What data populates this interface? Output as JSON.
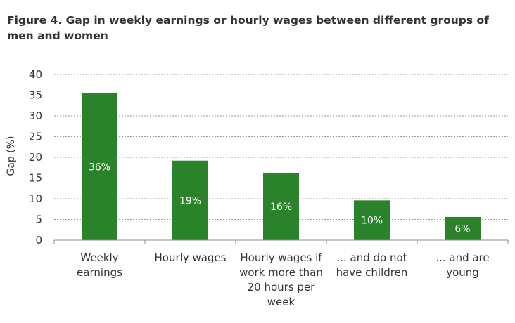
{
  "chart_data": {
    "type": "bar",
    "title": "Figure 4. Gap in weekly earnings or hourly wages between different groups of men and women",
    "ylabel": "Gap (%)",
    "xlabel": "",
    "ylim": [
      0,
      40
    ],
    "yticks": [
      0,
      5,
      10,
      15,
      20,
      25,
      30,
      35,
      40
    ],
    "grid": "dashed horizontal",
    "bar_color": "#2a832b",
    "categories": [
      [
        "Weekly",
        "earnings"
      ],
      [
        "Hourly wages"
      ],
      [
        "Hourly wages if",
        "work more than",
        "20 hours per",
        "week"
      ],
      [
        "... and do not",
        "have children"
      ],
      [
        "... and are",
        "young"
      ]
    ],
    "values": [
      35.5,
      19.2,
      16.2,
      9.6,
      5.6
    ],
    "data_labels": [
      "36%",
      "19%",
      "16%",
      "10%",
      "6%"
    ]
  }
}
